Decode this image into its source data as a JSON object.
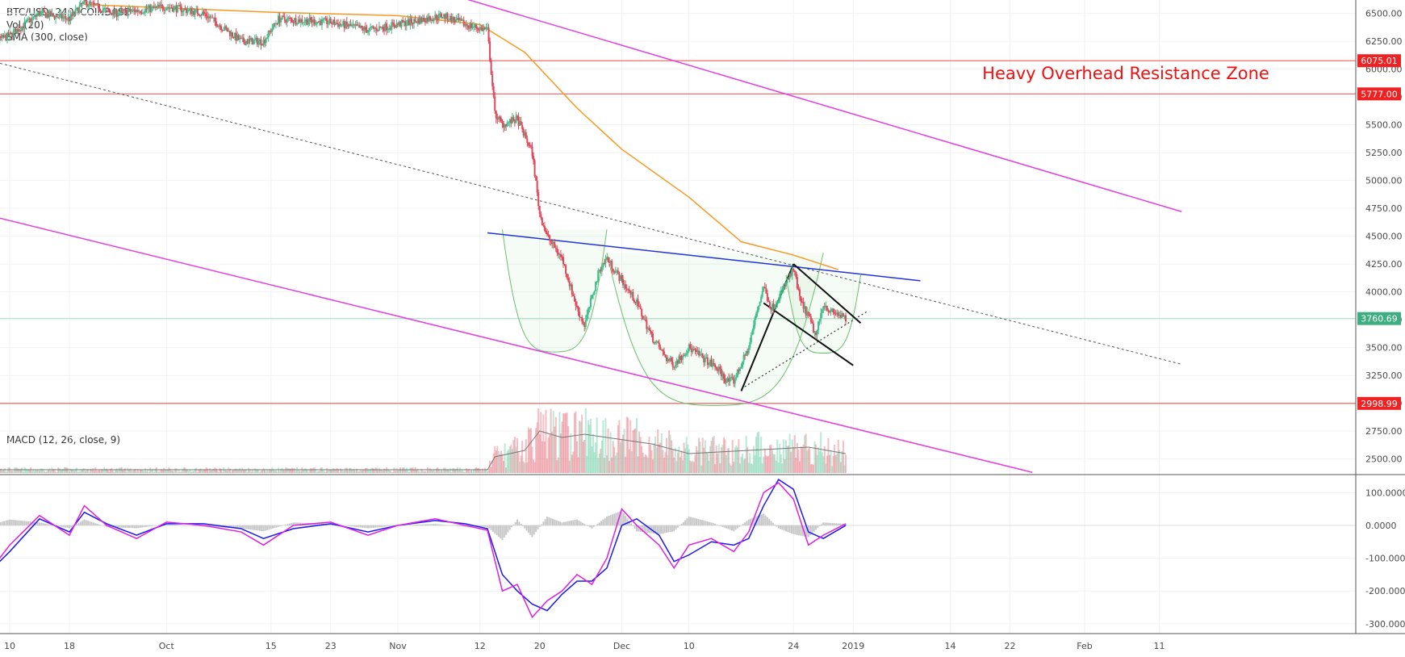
{
  "header": {
    "symbol_line": "BTC/USD, 240, COINBASE",
    "volume_label": "Vol (20)",
    "sma_label": "SMA (300, close)",
    "macd_label": "MACD (12, 26, close, 9)"
  },
  "annotation": {
    "text": "Heavy Overhead Resistance Zone",
    "color": "#ee1111"
  },
  "colors": {
    "up": "#3dbf8a",
    "down": "#e0475a",
    "sma": "#f59a23",
    "channel": "#e040e0",
    "hline": "#f07070",
    "neckline": "#2233dd",
    "macd": "#1a1aee",
    "signal": "#e020e0",
    "histogram": "#c8c8c8",
    "last_price": "#3dae82",
    "badge_red": "#ee2222"
  },
  "chart_data": [
    {
      "type": "candlestick",
      "title": "BTC/USD, 240, COINBASE",
      "x_axis": {
        "labels": [
          "10",
          "18",
          "Oct",
          "15",
          "23",
          "Nov",
          "12",
          "20",
          "Dec",
          "10",
          "24",
          "2019",
          "14",
          "22",
          "Feb",
          "11"
        ],
        "label_dates": [
          "2018-09-10",
          "2018-09-18",
          "2018-10-01",
          "2018-10-15",
          "2018-10-23",
          "2018-11-01",
          "2018-11-12",
          "2018-11-20",
          "2018-12-01",
          "2018-12-10",
          "2018-12-24",
          "2019-01-01",
          "2019-01-14",
          "2019-01-22",
          "2019-02-01",
          "2019-02-11"
        ]
      },
      "y_axis": {
        "ticks": [
          "6500.00",
          "6250.00",
          "6000.00",
          "5750.00",
          "5500.00",
          "5250.00",
          "5000.00",
          "4750.00",
          "4500.00",
          "4250.00",
          "4000.00",
          "3750.00",
          "3500.00",
          "3250.00",
          "3000.00",
          "2750.00",
          "2500.00"
        ],
        "range": [
          2360,
          6620
        ]
      },
      "price_path": {
        "dates": [
          "2018-09-06",
          "2018-09-10",
          "2018-09-14",
          "2018-09-18",
          "2018-09-20",
          "2018-09-24",
          "2018-10-01",
          "2018-10-06",
          "2018-10-11",
          "2018-10-14",
          "2018-10-16",
          "2018-10-23",
          "2018-10-28",
          "2018-11-01",
          "2018-11-07",
          "2018-11-10",
          "2018-11-13",
          "2018-11-14",
          "2018-11-15",
          "2018-11-17",
          "2018-11-19",
          "2018-11-20",
          "2018-11-21",
          "2018-11-22",
          "2018-11-23",
          "2018-11-25",
          "2018-11-26",
          "2018-11-28",
          "2018-11-29",
          "2018-12-01",
          "2018-12-03",
          "2018-12-05",
          "2018-12-07",
          "2018-12-08",
          "2018-12-10",
          "2018-12-12",
          "2018-12-14",
          "2018-12-15",
          "2018-12-16",
          "2018-12-18",
          "2018-12-19",
          "2018-12-20",
          "2018-12-21",
          "2018-12-22",
          "2018-12-24",
          "2018-12-25",
          "2018-12-26",
          "2018-12-27",
          "2018-12-28",
          "2018-12-29",
          "2018-12-30",
          "2018-12-31"
        ],
        "close": [
          6200,
          6300,
          6500,
          6450,
          6600,
          6500,
          6560,
          6500,
          6250,
          6250,
          6450,
          6420,
          6350,
          6400,
          6480,
          6400,
          6350,
          5600,
          5500,
          5550,
          5250,
          4700,
          4500,
          4400,
          4300,
          3850,
          3700,
          4200,
          4300,
          4100,
          3900,
          3600,
          3400,
          3350,
          3500,
          3400,
          3300,
          3200,
          3200,
          3500,
          3800,
          4050,
          3850,
          3950,
          4200,
          3900,
          3780,
          3600,
          3900,
          3820,
          3800,
          3750
        ]
      },
      "volume_path": {
        "dates": [
          "2018-09-06",
          "2018-11-13",
          "2018-11-14",
          "2018-11-18",
          "2018-11-20",
          "2018-11-23",
          "2018-11-26",
          "2018-12-05",
          "2018-12-10",
          "2018-12-18",
          "2018-12-26",
          "2018-12-31"
        ],
        "volume_ma": [
          0.05,
          0.05,
          0.25,
          0.35,
          0.65,
          0.55,
          0.6,
          0.45,
          0.3,
          0.35,
          0.4,
          0.3
        ]
      },
      "sma_300": {
        "dates": [
          "2018-09-20",
          "2018-10-15",
          "2018-11-01",
          "2018-11-12",
          "2018-11-18",
          "2018-11-25",
          "2018-12-01",
          "2018-12-10",
          "2018-12-17",
          "2018-12-24",
          "2018-12-30"
        ],
        "values": [
          6580,
          6510,
          6480,
          6400,
          6150,
          5650,
          5280,
          4850,
          4450,
          4330,
          4200
        ]
      },
      "horizontal_levels": [
        {
          "price": 6075.01,
          "label": "6075.01"
        },
        {
          "price": 5777.0,
          "label": "5777.00"
        },
        {
          "price": 2998.99,
          "label": "2998.99"
        }
      ],
      "last_price": {
        "price": 3760.69,
        "label": "3760.69"
      },
      "drawings": {
        "upper_channel": [
          [
            "2018-10-23",
            6990
          ],
          [
            "2019-02-14",
            4720
          ]
        ],
        "lower_channel": [
          [
            "2018-08-24",
            4920
          ],
          [
            "2019-01-25",
            2380
          ]
        ],
        "dotted_trend": [
          [
            "2018-08-24",
            6320
          ],
          [
            "2019-02-14",
            3350
          ]
        ],
        "neckline": [
          [
            "2018-11-13",
            4530
          ],
          [
            "2019-01-10",
            4100
          ]
        ],
        "flag_pole": [
          [
            "2018-12-17",
            3110
          ],
          [
            "2018-12-24",
            4250
          ]
        ],
        "flag_upper": [
          [
            "2018-12-24",
            4250
          ],
          [
            "2019-01-02",
            3720
          ]
        ],
        "flag_lower": [
          [
            "2018-12-20",
            3900
          ],
          [
            "2019-01-01",
            3340
          ]
        ],
        "flag_dotted": [
          [
            "2018-12-17",
            3130
          ],
          [
            "2019-01-03",
            3830
          ]
        ]
      },
      "cup_handle_arcs": [
        {
          "from": "2018-11-15",
          "to": "2018-11-29",
          "top": 4560,
          "bottom": 3460
        },
        {
          "from": "2018-11-29",
          "to": "2018-12-28",
          "top": 4350,
          "bottom": 2980
        },
        {
          "from": "2018-12-23",
          "to": "2019-01-02",
          "top": 4150,
          "bottom": 3450
        }
      ]
    },
    {
      "type": "line",
      "title": "MACD (12, 26, close, 9)",
      "y_axis": {
        "ticks": [
          "100.0000",
          "0.0000",
          "-100.0000",
          "-200.0000",
          "-300.0000"
        ],
        "range": [
          -330,
          150
        ]
      },
      "series": [
        {
          "dates": [
            "2018-09-06",
            "2018-09-10",
            "2018-09-14",
            "2018-09-18",
            "2018-09-20",
            "2018-09-23",
            "2018-09-27",
            "2018-10-01",
            "2018-10-06",
            "2018-10-11",
            "2018-10-14",
            "2018-10-18",
            "2018-10-23",
            "2018-10-28",
            "2018-11-01",
            "2018-11-06",
            "2018-11-10",
            "2018-11-13",
            "2018-11-15",
            "2018-11-17",
            "2018-11-19",
            "2018-11-21",
            "2018-11-23",
            "2018-11-25",
            "2018-11-27",
            "2018-11-29",
            "2018-12-01",
            "2018-12-03",
            "2018-12-06",
            "2018-12-08",
            "2018-12-10",
            "2018-12-13",
            "2018-12-16",
            "2018-12-18",
            "2018-12-20",
            "2018-12-22",
            "2018-12-24",
            "2018-12-26",
            "2018-12-28",
            "2018-12-31"
          ],
          "values": [
            -180,
            -60,
            30,
            -30,
            60,
            0,
            -40,
            10,
            0,
            -20,
            -60,
            0,
            10,
            -30,
            0,
            20,
            0,
            -15,
            -200,
            -180,
            -280,
            -230,
            -200,
            -150,
            -180,
            -100,
            50,
            0,
            -60,
            -130,
            -60,
            -40,
            -80,
            -20,
            100,
            130,
            80,
            -60,
            -30,
            5
          ]
        },
        {
          "dates": [
            "2018-09-06",
            "2018-09-10",
            "2018-09-14",
            "2018-09-18",
            "2018-09-20",
            "2018-09-23",
            "2018-09-27",
            "2018-10-01",
            "2018-10-06",
            "2018-10-11",
            "2018-10-14",
            "2018-10-18",
            "2018-10-23",
            "2018-10-28",
            "2018-11-01",
            "2018-11-06",
            "2018-11-10",
            "2018-11-13",
            "2018-11-15",
            "2018-11-17",
            "2018-11-19",
            "2018-11-21",
            "2018-11-23",
            "2018-11-25",
            "2018-11-27",
            "2018-11-29",
            "2018-12-01",
            "2018-12-03",
            "2018-12-06",
            "2018-12-08",
            "2018-12-10",
            "2018-12-13",
            "2018-12-16",
            "2018-12-18",
            "2018-12-20",
            "2018-12-22",
            "2018-12-24",
            "2018-12-26",
            "2018-12-28",
            "2018-12-31"
          ],
          "values": [
            -170,
            -80,
            20,
            -20,
            40,
            5,
            -30,
            5,
            5,
            -10,
            -40,
            -10,
            5,
            -20,
            0,
            15,
            5,
            -10,
            -150,
            -200,
            -240,
            -260,
            -210,
            -170,
            -170,
            -130,
            0,
            20,
            -30,
            -110,
            -90,
            -50,
            -60,
            -40,
            60,
            140,
            110,
            -20,
            -40,
            0
          ]
        }
      ]
    }
  ]
}
